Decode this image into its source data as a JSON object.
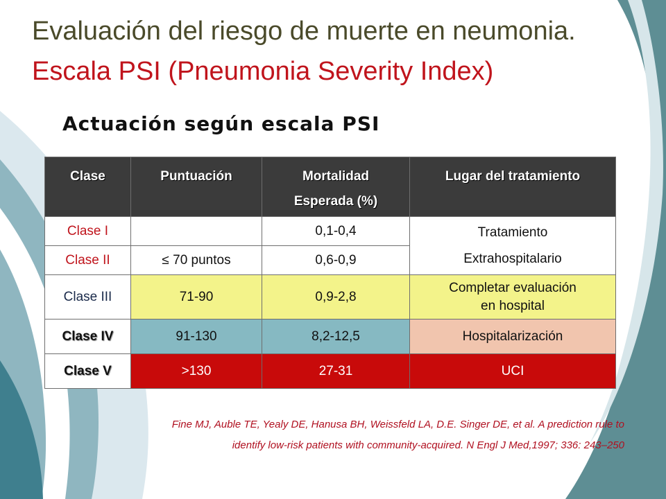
{
  "slide": {
    "title_line1": "Evaluación del riesgo de muerte en neumonia.",
    "title_line2": "Escala PSI (Pneumonia Severity Index)",
    "subtitle": "Actuación según escala PSI"
  },
  "table": {
    "headers": {
      "clase": "Clase",
      "puntuacion": "Puntuación",
      "mortalidad_1": "Mortalidad",
      "mortalidad_2": "Esperada (%)",
      "lugar": "Lugar del tratamiento"
    },
    "rows": [
      {
        "clase": "Clase I",
        "puntuacion": "",
        "mortalidad": "0,1-0,4"
      },
      {
        "clase": "Clase II",
        "puntuacion_symbol": "≤",
        "puntuacion": "70 puntos",
        "mortalidad": "0,6-0,9"
      },
      {
        "clase": "Clase III",
        "puntuacion": "71-90",
        "mortalidad": "0,9-2,8",
        "lugar_1": "Completar evaluación",
        "lugar_2": "en hospital"
      },
      {
        "clase": "Clase IV",
        "puntuacion": "91-130",
        "mortalidad": "8,2-12,5",
        "lugar": "Hospitalarización"
      },
      {
        "clase": "Clase V",
        "puntuacion": ">130",
        "mortalidad": "27-31",
        "lugar": "UCI"
      }
    ],
    "lugar_merged_1": "Tratamiento",
    "lugar_merged_2": "Extrahospitalario"
  },
  "citation": {
    "line1": "Fine MJ, Auble TE,  Yealy DE, Hanusa BH, Weissfeld LA, D.E. Singer DE, et al. A prediction rule to",
    "line2": "identify low-risk patients with community-acquired.  N Engl J Med,1997; 336: 243–250"
  },
  "colors": {
    "header_bg": "#3b3b3b",
    "yellow": "#f3f38a",
    "teal": "#86b9c2",
    "salmon": "#f1c5ae",
    "red": "#c80a0a",
    "title_red": "#c0141c",
    "swoosh_teal": "#5e8e94"
  }
}
